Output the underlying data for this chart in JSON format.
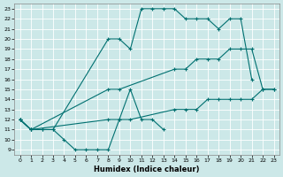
{
  "xlabel": "Humidex (Indice chaleur)",
  "line_color": "#007070",
  "bg_color": "#cce8e8",
  "grid_color": "#b0d8d8",
  "xlim_min": -0.5,
  "xlim_max": 23.5,
  "ylim_min": 8.5,
  "ylim_max": 23.5,
  "xticks": [
    0,
    1,
    2,
    3,
    4,
    5,
    6,
    7,
    8,
    9,
    10,
    11,
    12,
    13,
    14,
    15,
    16,
    17,
    18,
    19,
    20,
    21,
    22,
    23
  ],
  "yticks": [
    9,
    10,
    11,
    12,
    13,
    14,
    15,
    16,
    17,
    18,
    19,
    20,
    21,
    22,
    23
  ],
  "tick_fontsize": 4.5,
  "xlabel_fontsize": 6,
  "series": [
    {
      "x": [
        0,
        1,
        2,
        3,
        4,
        5,
        6,
        7,
        8,
        9,
        10,
        11,
        12,
        13
      ],
      "y": [
        12,
        11,
        11,
        11,
        10,
        9,
        9,
        9,
        9,
        12,
        15,
        12,
        12,
        11
      ]
    },
    {
      "x": [
        0,
        1,
        2,
        3,
        8,
        9,
        10,
        11,
        12,
        13,
        14,
        15,
        16,
        17,
        18,
        19,
        20,
        21
      ],
      "y": [
        12,
        11,
        11,
        11,
        20,
        20,
        19,
        23,
        23,
        23,
        23,
        22,
        22,
        22,
        21,
        22,
        22,
        16
      ]
    },
    {
      "x": [
        0,
        1,
        8,
        9,
        14,
        15,
        16,
        17,
        18,
        19,
        20,
        21,
        22,
        23
      ],
      "y": [
        12,
        11,
        15,
        15,
        17,
        17,
        18,
        18,
        18,
        19,
        19,
        19,
        15,
        15
      ]
    },
    {
      "x": [
        0,
        1,
        8,
        9,
        10,
        14,
        15,
        16,
        17,
        18,
        19,
        20,
        21,
        22,
        23
      ],
      "y": [
        12,
        11,
        12,
        12,
        12,
        13,
        13,
        13,
        14,
        14,
        14,
        14,
        14,
        15,
        15
      ]
    }
  ]
}
